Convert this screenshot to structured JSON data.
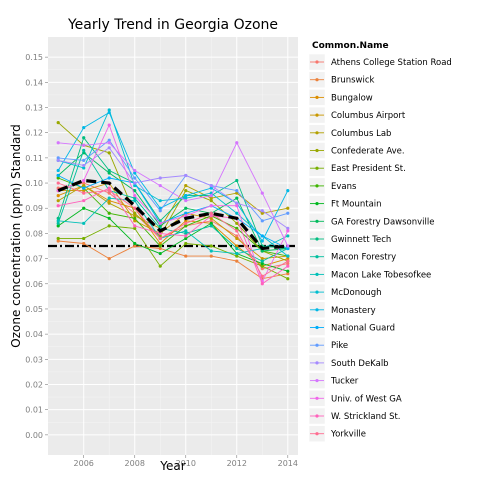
{
  "chart_data": {
    "type": "line",
    "title": "Yearly Trend in Georgia Ozone",
    "xlabel": "Year",
    "ylabel": "Ozone concentration (ppm) Standard",
    "xlim": [
      2004.6,
      2014.4
    ],
    "ylim": [
      -0.008,
      0.158
    ],
    "x_ticks": [
      2006,
      2008,
      2010,
      2012,
      2014
    ],
    "y_ticks": [
      0.0,
      0.01,
      0.02,
      0.03,
      0.04,
      0.05,
      0.06,
      0.07,
      0.08,
      0.09,
      0.1,
      0.11,
      0.12,
      0.13,
      0.14,
      0.15
    ],
    "x": [
      2005,
      2006,
      2007,
      2008,
      2009,
      2010,
      2011,
      2012,
      2013,
      2014
    ],
    "legend_title": "Common.Name",
    "legend_position": "right",
    "grid": true,
    "panel_background": "#ebebeb",
    "series": [
      {
        "name": "Athens College Station Road",
        "color": "#F8766D",
        "values": [
          0.098,
          0.1,
          0.096,
          0.088,
          0.078,
          0.083,
          0.085,
          0.079,
          0.066,
          0.068
        ]
      },
      {
        "name": "Brunswick",
        "color": "#EC823C",
        "values": [
          0.077,
          0.076,
          0.07,
          0.075,
          0.074,
          0.071,
          0.071,
          0.069,
          0.062,
          0.064
        ]
      },
      {
        "name": "Bungalow",
        "color": "#DC8E00",
        "values": [
          0.095,
          0.099,
          0.093,
          0.09,
          0.076,
          0.085,
          0.084,
          0.075,
          0.067,
          0.07
        ]
      },
      {
        "name": "Columbus Airport",
        "color": "#C99800",
        "values": [
          0.097,
          0.097,
          0.1,
          0.085,
          0.08,
          0.088,
          0.086,
          0.078,
          0.07,
          0.071
        ]
      },
      {
        "name": "Columbus Lab",
        "color": "#B3A000",
        "values": [
          0.093,
          0.099,
          0.092,
          0.087,
          0.082,
          0.099,
          0.094,
          0.096,
          0.088,
          0.09
        ]
      },
      {
        "name": "Confederate Ave.",
        "color": "#99A800",
        "values": [
          0.124,
          0.115,
          0.112,
          0.088,
          0.079,
          0.097,
          0.093,
          0.084,
          0.073,
          0.069
        ]
      },
      {
        "name": "East President St.",
        "color": "#77AF00",
        "values": [
          0.078,
          0.078,
          0.083,
          0.082,
          0.067,
          0.076,
          0.075,
          0.071,
          0.067,
          0.062
        ]
      },
      {
        "name": "Evans",
        "color": "#3EB400",
        "values": [
          0.102,
          0.098,
          0.088,
          0.086,
          0.075,
          0.083,
          0.087,
          0.082,
          0.073,
          0.071
        ]
      },
      {
        "name": "Ft Mountain",
        "color": "#00B81F",
        "values": [
          0.083,
          0.09,
          0.086,
          0.076,
          0.072,
          0.078,
          0.084,
          0.072,
          0.068,
          0.065
        ]
      },
      {
        "name": "GA Forestry Dawsonville",
        "color": "#00BA5B",
        "values": [
          0.103,
          0.112,
          0.104,
          0.097,
          0.083,
          0.09,
          0.088,
          0.094,
          0.073,
          0.074
        ]
      },
      {
        "name": "Gwinnett Tech",
        "color": "#00BD80",
        "values": [
          0.086,
          0.118,
          0.105,
          0.1,
          0.085,
          0.095,
          0.095,
          0.101,
          0.075,
          0.074
        ]
      },
      {
        "name": "Macon Forestry",
        "color": "#00BF9E",
        "values": [
          0.084,
          0.113,
          0.097,
          0.094,
          0.082,
          0.08,
          0.083,
          0.074,
          0.069,
          0.074
        ]
      },
      {
        "name": "Macon Lake Tobesofkee",
        "color": "#00C0B8",
        "values": [
          0.085,
          0.084,
          0.094,
          0.093,
          0.078,
          0.081,
          0.073,
          0.072,
          0.074,
          0.079
        ]
      },
      {
        "name": "McDonough",
        "color": "#00BED0",
        "values": [
          0.109,
          0.106,
          0.129,
          0.099,
          0.093,
          0.094,
          0.096,
          0.088,
          0.079,
          0.071
        ]
      },
      {
        "name": "Monastery",
        "color": "#00B8E6",
        "values": [
          0.105,
          0.122,
          0.128,
          0.104,
          0.09,
          0.095,
          0.098,
          0.092,
          0.077,
          0.097
        ]
      },
      {
        "name": "National Guard",
        "color": "#00ADFA",
        "values": [
          0.103,
          0.098,
          0.102,
          0.1,
          0.084,
          0.088,
          0.091,
          0.086,
          0.079,
          0.074
        ]
      },
      {
        "name": "Pike",
        "color": "#619CFF",
        "values": [
          0.11,
          0.109,
          0.117,
          0.102,
          0.089,
          0.103,
          0.099,
          0.097,
          0.085,
          0.088
        ]
      },
      {
        "name": "South DeKalb",
        "color": "#A58AFF",
        "values": [
          0.109,
          0.107,
          0.114,
          0.1,
          0.102,
          0.103,
          0.099,
          0.092,
          0.089,
          0.082
        ]
      },
      {
        "name": "Tucker",
        "color": "#D575FE",
        "values": [
          0.116,
          0.115,
          0.116,
          0.105,
          0.099,
          0.093,
          0.095,
          0.116,
          0.096,
          0.075
        ]
      },
      {
        "name": "Univ. of West GA",
        "color": "#F066EA",
        "values": [
          0.097,
          0.101,
          0.123,
          0.095,
          0.084,
          0.087,
          0.091,
          0.091,
          0.061,
          0.081
        ]
      },
      {
        "name": "W. Strickland St.",
        "color": "#FF62BC",
        "values": [
          0.091,
          0.093,
          0.098,
          0.083,
          0.08,
          0.079,
          0.087,
          0.086,
          0.06,
          0.067
        ]
      },
      {
        "name": "Yorkville",
        "color": "#FF6C91",
        "values": [
          0.1,
          0.096,
          0.097,
          0.09,
          0.078,
          0.084,
          0.088,
          0.081,
          0.063,
          0.069
        ]
      }
    ],
    "mean_line": {
      "values": [
        0.097,
        0.101,
        0.1,
        0.091,
        0.081,
        0.086,
        0.088,
        0.086,
        0.074,
        0.075
      ],
      "color": "#000000",
      "style": "dashed"
    },
    "reference_line": {
      "value": 0.075,
      "color": "#000000",
      "style": "dot-dash"
    }
  }
}
